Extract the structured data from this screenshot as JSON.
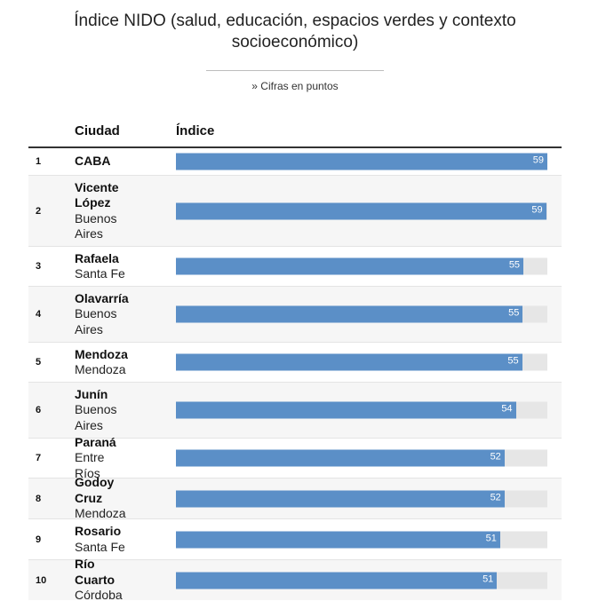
{
  "header": {
    "title": "Índice NIDO (salud, educación, espacios verdes y contexto socioeconómico)",
    "subtitle": "» Cifras en puntos"
  },
  "table": {
    "col_city": "Ciudad",
    "col_index": "Índice"
  },
  "chart_data": {
    "type": "bar",
    "title": "Índice NIDO (salud, educación, espacios verdes y contexto socioeconómico)",
    "subtitle": "» Cifras en puntos",
    "xlim": [
      0,
      59
    ],
    "categories": [
      "CABA",
      "Vicente López",
      "Rafaela",
      "Olavarría",
      "Mendoza",
      "Junín",
      "Paraná",
      "Godoy Cruz",
      "Rosario",
      "Río Cuarto"
    ],
    "rows": [
      {
        "rank": "1",
        "city": "CABA",
        "province": "",
        "value": 59.3
      },
      {
        "rank": "2",
        "city": "Vicente López",
        "province": "Buenos Aires",
        "value": 58.8
      },
      {
        "rank": "3",
        "city": "Rafaela",
        "province": "Santa Fe",
        "value": 55.2
      },
      {
        "rank": "4",
        "city": "Olavarría",
        "province": "Buenos Aires",
        "value": 55.1
      },
      {
        "rank": "5",
        "city": "Mendoza",
        "province": "Mendoza",
        "value": 55.0
      },
      {
        "rank": "6",
        "city": "Junín",
        "province": "Buenos Aires",
        "value": 54.0
      },
      {
        "rank": "7",
        "city": "Paraná",
        "province": "Entre Ríos",
        "value": 52.2
      },
      {
        "rank": "8",
        "city": "Godoy Cruz",
        "province": "Mendoza",
        "value": 52.2
      },
      {
        "rank": "9",
        "city": "Rosario",
        "province": "Santa Fe",
        "value": 51.5
      },
      {
        "rank": "10",
        "city": "Río Cuarto",
        "province": "Córdoba",
        "value": 51.0
      }
    ],
    "labels": [
      "59",
      "59",
      "55",
      "55",
      "55",
      "54",
      "52",
      "52",
      "51",
      "51"
    ],
    "colors": {
      "bar": "#5b8fc7",
      "track": "#e6e6e6"
    }
  }
}
